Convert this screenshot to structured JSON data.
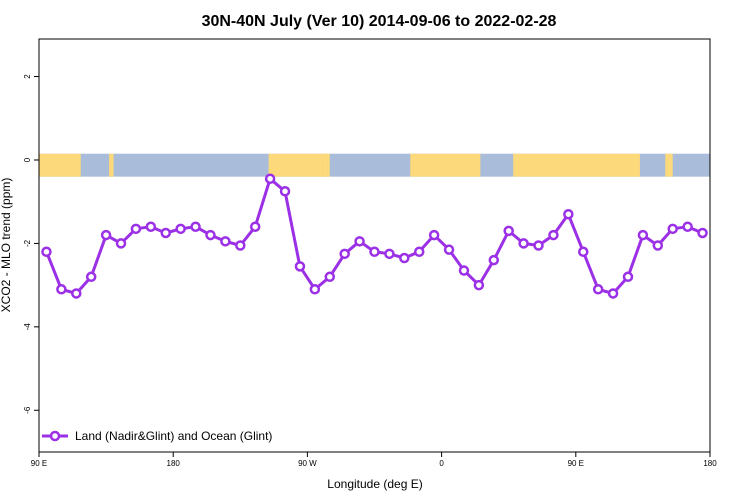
{
  "chart_data": {
    "type": "line",
    "title": "30N-40N July (Ver 10)   2014-09-06 to 2022-02-28",
    "xlabel": "Longitude (deg E)",
    "ylabel": "XCO2 - MLO trend (ppm)",
    "xlim": [
      90,
      540
    ],
    "ylim": [
      -7.0,
      2.9
    ],
    "x_ticks": [
      {
        "value": 90,
        "label": "90 E"
      },
      {
        "value": 180,
        "label": "180"
      },
      {
        "value": 270,
        "label": "90 W"
      },
      {
        "value": 360,
        "label": "0"
      },
      {
        "value": 450,
        "label": "90 E"
      },
      {
        "value": 540,
        "label": "180"
      }
    ],
    "y_ticks": [
      {
        "value": 2,
        "label": "2"
      },
      {
        "value": 0,
        "label": "0"
      },
      {
        "value": -2,
        "label": "-2"
      },
      {
        "value": -4,
        "label": "-4"
      },
      {
        "value": -6,
        "label": "-6"
      }
    ],
    "grid": false,
    "legend_position": "bottom-left",
    "land_ocean_strip": {
      "y_range": [
        -0.4,
        0.15
      ],
      "land_color": "#fcd97a",
      "ocean_color": "#a9bcd9",
      "land_spans": [
        [
          90,
          118
        ],
        [
          137,
          140
        ],
        [
          244,
          280
        ],
        [
          280,
          285
        ],
        [
          280,
          284
        ],
        [
          339,
          386
        ],
        [
          408,
          493
        ],
        [
          510,
          515
        ]
      ]
    },
    "series": [
      {
        "name": "Land (Nadir&Glint) and Ocean (Glint)",
        "color": "#9b30e6",
        "x": [
          95,
          105,
          115,
          125,
          135,
          145,
          155,
          165,
          175,
          185,
          195,
          205,
          215,
          225,
          235,
          245,
          255,
          265,
          275,
          285,
          295,
          305,
          315,
          325,
          335,
          345,
          355,
          365,
          375,
          385,
          395,
          405,
          415,
          425,
          435,
          445,
          455,
          465,
          475,
          485,
          495,
          505,
          515,
          525,
          535
        ],
        "y": [
          -2.2,
          -3.1,
          -3.2,
          -2.8,
          -1.8,
          -2.0,
          -1.65,
          -1.6,
          -1.75,
          -1.65,
          -1.6,
          -1.8,
          -1.95,
          -2.05,
          -1.6,
          -0.45,
          -0.75,
          -2.55,
          -3.1,
          -2.8,
          -2.25,
          -1.95,
          -2.2,
          -2.25,
          -2.35,
          -2.2,
          -1.8,
          -2.15,
          -2.65,
          -3.0,
          -2.4,
          -1.7,
          -2.0,
          -2.05,
          -1.8,
          -1.3,
          -2.2,
          -3.1,
          -3.2,
          -2.8,
          -1.8,
          -2.05,
          -1.65,
          -1.6,
          -1.75
        ]
      }
    ]
  }
}
